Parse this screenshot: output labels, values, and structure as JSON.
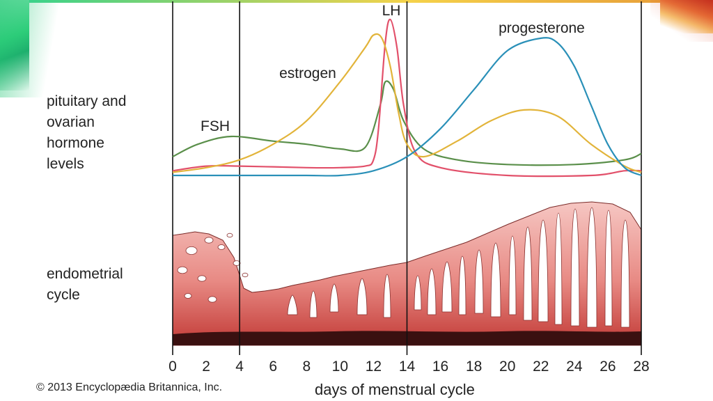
{
  "labels": {
    "hormone_axis": [
      "pituitary and",
      "ovarian",
      "hormone",
      "levels"
    ],
    "endometrial_axis": [
      "endometrial",
      "cycle"
    ],
    "x_title": "days of menstrual cycle",
    "copyright": "© 2013 Encyclopædia Britannica, Inc."
  },
  "colors": {
    "FSH": "#5a8f4a",
    "LH": "#e2506a",
    "estrogen": "#e2b43a",
    "progesterone": "#2a90b8",
    "endometrium_light": "#f7c4c0",
    "endometrium_dark": "#c8403a",
    "base": "#3a1010"
  },
  "chart_data": {
    "type": "line",
    "x_title": "days of menstrual cycle",
    "xlim": [
      0,
      28
    ],
    "xticks": [
      "0",
      "2",
      "4",
      "6",
      "8",
      "10",
      "12",
      "14",
      "16",
      "18",
      "20",
      "22",
      "24",
      "26",
      "28"
    ],
    "phase_boundaries": [
      0,
      4,
      14,
      28
    ],
    "series": [
      {
        "name": "FSH",
        "color": "#5a8f4a",
        "points": [
          [
            0,
            0.12
          ],
          [
            1.5,
            0.2
          ],
          [
            3.5,
            0.25
          ],
          [
            6,
            0.22
          ],
          [
            8,
            0.2
          ],
          [
            10,
            0.17
          ],
          [
            11.5,
            0.18
          ],
          [
            12.4,
            0.45
          ],
          [
            12.7,
            0.6
          ],
          [
            13.2,
            0.55
          ],
          [
            13.8,
            0.35
          ],
          [
            15,
            0.17
          ],
          [
            17,
            0.1
          ],
          [
            20,
            0.07
          ],
          [
            24,
            0.07
          ],
          [
            27,
            0.1
          ],
          [
            28,
            0.14
          ]
        ]
      },
      {
        "name": "LH",
        "color": "#e2506a",
        "points": [
          [
            0,
            0.03
          ],
          [
            2,
            0.06
          ],
          [
            4,
            0.06
          ],
          [
            8,
            0.05
          ],
          [
            10,
            0.05
          ],
          [
            11.5,
            0.06
          ],
          [
            12,
            0.1
          ],
          [
            12.3,
            0.3
          ],
          [
            12.7,
            0.85
          ],
          [
            13,
            1.0
          ],
          [
            13.4,
            0.82
          ],
          [
            13.8,
            0.45
          ],
          [
            14.5,
            0.15
          ],
          [
            16,
            0.05
          ],
          [
            20,
            0.0
          ],
          [
            25,
            0.0
          ],
          [
            27,
            0.03
          ],
          [
            28,
            0.03
          ]
        ]
      },
      {
        "name": "estrogen",
        "color": "#e2b43a",
        "points": [
          [
            0,
            0.02
          ],
          [
            2,
            0.05
          ],
          [
            4,
            0.1
          ],
          [
            6,
            0.2
          ],
          [
            8,
            0.35
          ],
          [
            10,
            0.6
          ],
          [
            11.5,
            0.82
          ],
          [
            12,
            0.9
          ],
          [
            12.5,
            0.88
          ],
          [
            13,
            0.7
          ],
          [
            13.5,
            0.4
          ],
          [
            14,
            0.2
          ],
          [
            15,
            0.12
          ],
          [
            17,
            0.22
          ],
          [
            19,
            0.35
          ],
          [
            21,
            0.42
          ],
          [
            23,
            0.38
          ],
          [
            25,
            0.2
          ],
          [
            27,
            0.06
          ],
          [
            28,
            0.02
          ]
        ]
      },
      {
        "name": "progesterone",
        "color": "#2a90b8",
        "points": [
          [
            0,
            0.0
          ],
          [
            4,
            0.0
          ],
          [
            8,
            0.0
          ],
          [
            10,
            0.0
          ],
          [
            12,
            0.03
          ],
          [
            14,
            0.12
          ],
          [
            16,
            0.3
          ],
          [
            18,
            0.55
          ],
          [
            20,
            0.8
          ],
          [
            22,
            0.88
          ],
          [
            23,
            0.85
          ],
          [
            24,
            0.7
          ],
          [
            25,
            0.45
          ],
          [
            26,
            0.2
          ],
          [
            27,
            0.05
          ],
          [
            28,
            0.0
          ]
        ]
      }
    ]
  }
}
